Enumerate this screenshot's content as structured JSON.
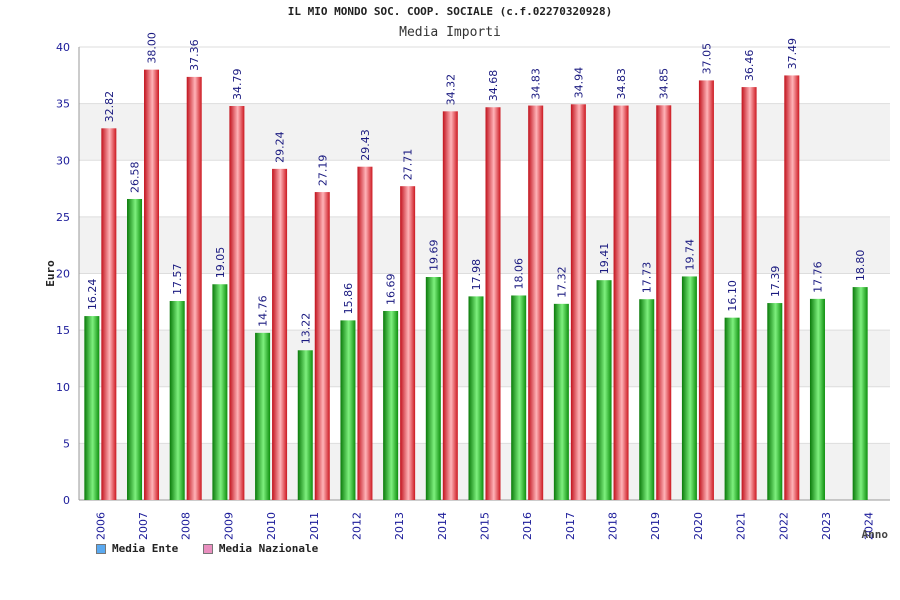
{
  "chart_data": {
    "type": "bar",
    "title": "IL MIO MONDO SOC. COOP. SOCIALE (c.f.02270320928)",
    "subtitle": "Media Importi",
    "ylabel": "Euro",
    "xlabel": "Anno",
    "ylim": [
      0,
      40
    ],
    "yticks": [
      0,
      5,
      10,
      15,
      20,
      25,
      30,
      35,
      40
    ],
    "grid": true,
    "categories": [
      "2006",
      "2007",
      "2008",
      "2009",
      "2010",
      "2011",
      "2012",
      "2013",
      "2014",
      "2015",
      "2016",
      "2017",
      "2018",
      "2019",
      "2020",
      "2021",
      "2022",
      "2023",
      "2024"
    ],
    "series": [
      {
        "name": "Media Ente",
        "color": "#1fbf1f",
        "values": [
          16.24,
          26.58,
          17.57,
          19.05,
          14.76,
          13.22,
          15.86,
          16.69,
          19.69,
          17.98,
          18.06,
          17.32,
          19.41,
          17.73,
          19.74,
          16.1,
          17.39,
          17.76,
          18.8
        ],
        "labels": [
          "16.24",
          "26.58",
          "17.57",
          "19.05",
          "14.76",
          "13.22",
          "15.86",
          "16.69",
          "19.69",
          "17.98",
          "18.06",
          "17.32",
          "19.41",
          "17.73",
          "19.74",
          "16.10",
          "17.39",
          "17.76",
          "18.80"
        ]
      },
      {
        "name": "Media Nazionale",
        "color": "#e8232e",
        "values": [
          32.82,
          38.0,
          37.36,
          34.79,
          29.24,
          27.19,
          29.43,
          27.71,
          34.32,
          34.68,
          34.83,
          34.94,
          34.83,
          34.85,
          37.05,
          36.46,
          37.49,
          null,
          null
        ],
        "labels": [
          "32.82",
          "38.00",
          "37.36",
          "34.79",
          "29.24",
          "27.19",
          "29.43",
          "27.71",
          "34.32",
          "34.68",
          "34.83",
          "34.94",
          "34.83",
          "34.85",
          "37.05",
          "36.46",
          "37.49",
          "",
          ""
        ]
      }
    ],
    "legend": {
      "position": "bottom-left",
      "items": [
        {
          "label": "Media Ente",
          "swatch": "#5aa9f0"
        },
        {
          "label": "Media Nazionale",
          "swatch": "#e98fbf"
        }
      ]
    }
  }
}
